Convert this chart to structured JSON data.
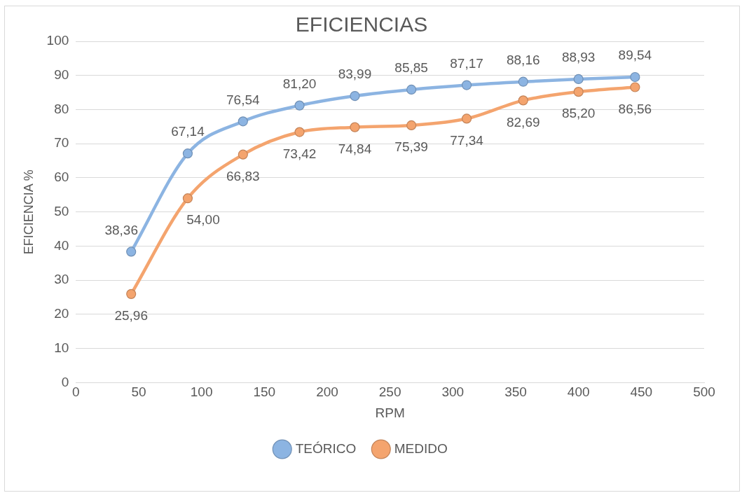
{
  "chart_data": {
    "type": "line",
    "title": "EFICIENCIAS",
    "xlabel": "RPM",
    "ylabel": "EFICIENCIA %",
    "x": [
      44,
      89,
      133,
      178,
      222,
      267,
      311,
      356,
      400,
      445
    ],
    "series": [
      {
        "name": "TEÓRICO",
        "color": "#8cb4e2",
        "values": [
          38.36,
          67.14,
          76.54,
          81.2,
          83.99,
          85.85,
          87.17,
          88.16,
          88.93,
          89.54
        ],
        "value_labels": [
          "38,36",
          "67,14",
          "76,54",
          "81,20",
          "83,99",
          "85,85",
          "87,17",
          "88,16",
          "88,93",
          "89,54"
        ]
      },
      {
        "name": "MEDIDO",
        "color": "#f4a46e",
        "values": [
          25.96,
          54.0,
          66.83,
          73.42,
          74.84,
          75.39,
          77.34,
          82.69,
          85.2,
          86.56
        ],
        "value_labels": [
          "25,96",
          "54,00",
          "66,83",
          "73,42",
          "74,84",
          "75,39",
          "77,34",
          "82,69",
          "85,20",
          "86,56"
        ]
      }
    ],
    "xlim": [
      0,
      500
    ],
    "xticks": [
      0,
      50,
      100,
      150,
      200,
      250,
      300,
      350,
      400,
      450,
      500
    ],
    "ylim": [
      0,
      100
    ],
    "yticks": [
      0,
      10,
      20,
      30,
      40,
      50,
      60,
      70,
      80,
      90,
      100
    ],
    "grid": "y",
    "legend": "bottom",
    "marker": "circle",
    "line_style": "solid"
  }
}
